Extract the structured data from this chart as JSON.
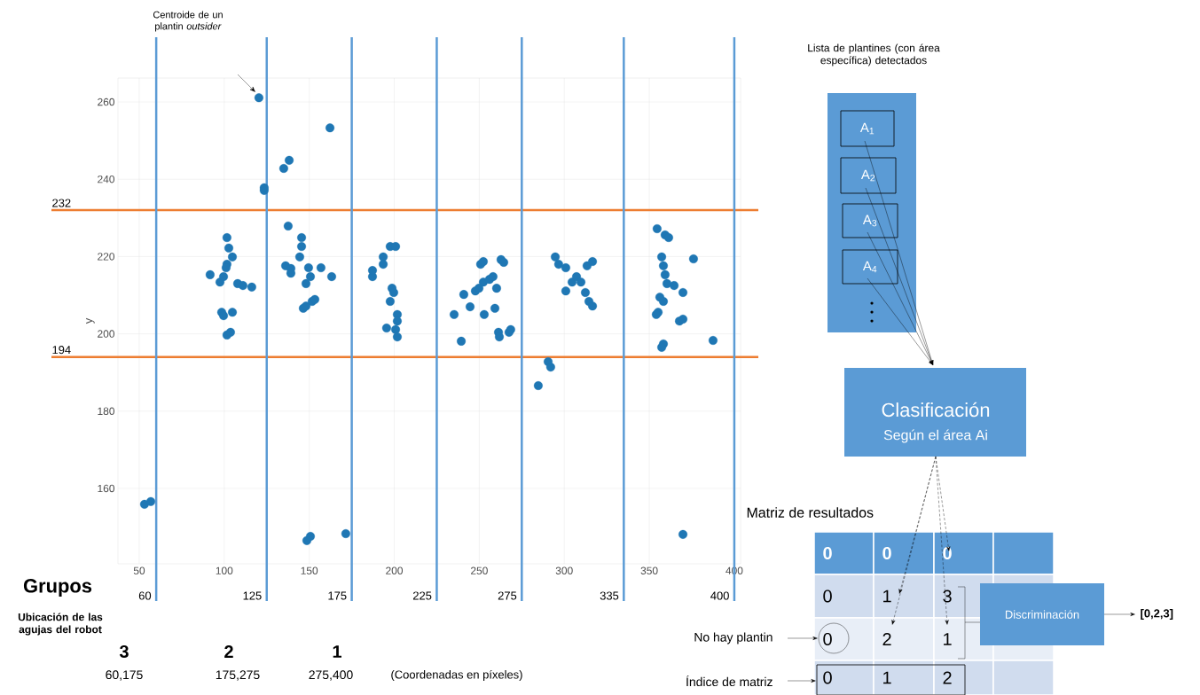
{
  "chart_data": {
    "type": "scatter",
    "ylabel": "y",
    "x": [
      53.1,
      56.8,
      120.4,
      162.2,
      135,
      138.2,
      123.5,
      123.5,
      91.7,
      97.5,
      99.6,
      101.6,
      101.6,
      102.7,
      104.8,
      101.1,
      98.5,
      99.6,
      104.8,
      101.6,
      103.7,
      107.9,
      111.0,
      116.2,
      137.6,
      145.5,
      145.5,
      144.4,
      136.1,
      139.2,
      139.2,
      149.6,
      148.1,
      150.7,
      156.9,
      163.2,
      146.5,
      148.1,
      151.7,
      153.3,
      150.7,
      148.6,
      171.5,
      187.2,
      187.2,
      193.5,
      193.5,
      197.6,
      200.8,
      198.7,
      199.7,
      197.6,
      201.8,
      201.8,
      200.8,
      201.8,
      195.5,
      235.2,
      239.4,
      240.9,
      244.6,
      247.7,
      249.8,
      252.4,
      252.9,
      250.8,
      252.4,
      256.0,
      258.1,
      260.2,
      259.2,
      261.3,
      261.8,
      262.8,
      264.4,
      267.5,
      268.5,
      284.7,
      290.5,
      292.0,
      294.7,
      296.7,
      300.9,
      300.9,
      304.6,
      307.2,
      309.8,
      312.4,
      314.5,
      316.6,
      313.4,
      316.6,
      354.6,
      359.3,
      361.4,
      357.3,
      358.3,
      359.3,
      360.4,
      356.2,
      358.3,
      355.2,
      354.1,
      358.3,
      357.3,
      364.6,
      369.8,
      367.7,
      369.8,
      376.0,
      369.8,
      387.5
    ],
    "series": [
      {
        "color": "#1f77b4",
        "values": [
          155.9,
          156.6,
          261.1,
          253.3,
          242.8,
          244.9,
          237.1,
          237.8,
          215.3,
          213.4,
          214.8,
          218.0,
          224.9,
          222.2,
          219.9,
          217.1,
          205.6,
          204.7,
          205.6,
          199.7,
          200.4,
          213.0,
          212.5,
          212.1,
          227.9,
          224.9,
          222.6,
          219.9,
          217.6,
          216.9,
          215.7,
          217.1,
          213.0,
          214.8,
          217.1,
          214.8,
          206.6,
          207.2,
          208.4,
          208.9,
          147.6,
          146.5,
          148.3,
          214.8,
          216.4,
          219.9,
          218.0,
          222.6,
          222.6,
          211.8,
          210.7,
          208.4,
          205.0,
          203.3,
          201.1,
          199.2,
          201.5,
          205.0,
          198.1,
          210.2,
          207.0,
          211.1,
          211.8,
          213.4,
          205.0,
          218.0,
          218.7,
          214.1,
          214.8,
          211.8,
          206.6,
          200.4,
          199.2,
          219.2,
          218.5,
          200.4,
          201.1,
          186.6,
          192.8,
          191.4,
          219.9,
          218.0,
          217.1,
          211.1,
          213.4,
          214.8,
          213.4,
          210.7,
          208.4,
          207.2,
          217.6,
          218.7,
          227.2,
          225.6,
          224.9,
          219.9,
          217.6,
          215.3,
          213.0,
          209.5,
          208.4,
          205.6,
          205.0,
          197.4,
          196.5,
          212.5,
          210.7,
          203.3,
          203.8,
          219.4,
          148.1,
          198.3
        ]
      }
    ],
    "xlim": [
      37.5,
      403.7
    ],
    "ylim": [
      140.5,
      266.2
    ],
    "xticks": [
      50,
      100,
      150,
      200,
      250,
      300,
      350,
      400
    ],
    "yticks": [
      160,
      180,
      200,
      220,
      240,
      260
    ],
    "grid": true,
    "marker": "circle",
    "ref_lines": [
      {
        "axis": "y",
        "value": 232,
        "label": "232",
        "color": "#ed7d31"
      },
      {
        "axis": "y",
        "value": 194,
        "label": "194",
        "color": "#ed7d31"
      },
      {
        "axis": "x",
        "value": 60,
        "label": "60",
        "color": "#5b9bd5"
      },
      {
        "axis": "x",
        "value": 125,
        "label": "125",
        "color": "#5b9bd5"
      },
      {
        "axis": "x",
        "value": 175,
        "label": "175",
        "color": "#5b9bd5"
      },
      {
        "axis": "x",
        "value": 225,
        "label": "225",
        "color": "#5b9bd5"
      },
      {
        "axis": "x",
        "value": 275,
        "label": "275",
        "color": "#5b9bd5"
      },
      {
        "axis": "x",
        "value": 335,
        "label": "335",
        "color": "#5b9bd5"
      },
      {
        "axis": "x",
        "value": 400,
        "label": "400",
        "color": "#5b9bd5"
      }
    ],
    "annotations": [
      "Centroide de un plantin *outsider*",
      "Grupos",
      "Ubicación de las agujas del robot",
      "3",
      "60,175",
      "2",
      "175,275",
      "1",
      "275,400",
      "(Coordenadas en píxeles)",
      "Lista de plantines (con área específica) detectados",
      "A$_{1}$",
      "A$_{2}$",
      "A$_{3}$",
      "A$_{4}$",
      "Clasificación",
      "Según el área Ai",
      "Matriz de resultados",
      "0",
      "0",
      "0",
      "0",
      "1",
      "3",
      "0",
      "2",
      "1",
      "0",
      "1",
      "2",
      "Discriminación",
      "[0,2,3]",
      "No hay plantin",
      "Índice de matriz"
    ]
  }
}
